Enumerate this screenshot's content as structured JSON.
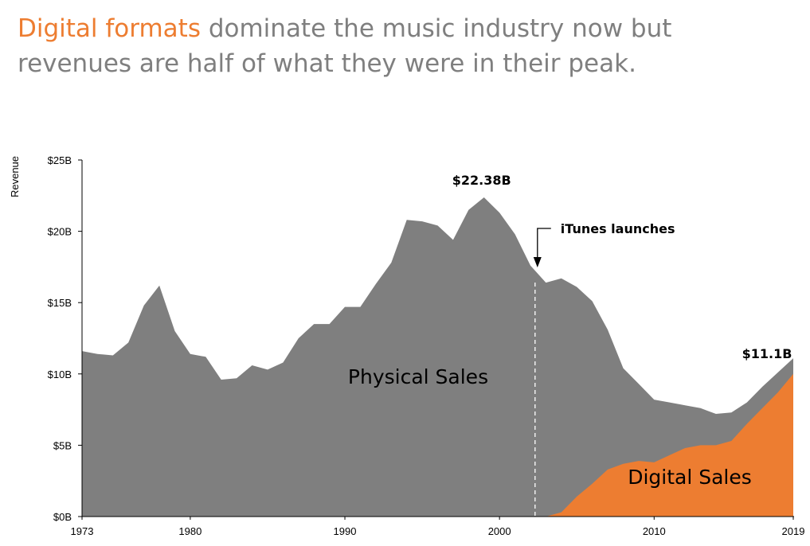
{
  "title": {
    "highlight": "Digital formats",
    "rest": " dominate the music industry now but revenues are half of what they were in their peak."
  },
  "colors": {
    "physical": "#7f7f7f",
    "digital": "#ed7d31",
    "title_text": "#7f7f7f"
  },
  "chart_data": {
    "type": "area",
    "stacked": true,
    "ylabel": "Revenue",
    "xlim": [
      1973,
      2019
    ],
    "ylim": [
      0,
      25
    ],
    "x_ticks": [
      "1973",
      "1980",
      "1990",
      "2000",
      "2010",
      "2019"
    ],
    "y_ticks": [
      "$0B",
      "$5B",
      "$10B",
      "$15B",
      "$20B",
      "$25B"
    ],
    "x": [
      1973,
      1974,
      1975,
      1976,
      1977,
      1978,
      1979,
      1980,
      1981,
      1982,
      1983,
      1984,
      1985,
      1986,
      1987,
      1988,
      1989,
      1990,
      1991,
      1992,
      1993,
      1994,
      1995,
      1996,
      1997,
      1998,
      1999,
      2000,
      2001,
      2002,
      2003,
      2004,
      2005,
      2006,
      2007,
      2008,
      2009,
      2010,
      2011,
      2012,
      2013,
      2014,
      2015,
      2016,
      2017,
      2018,
      2019
    ],
    "series": [
      {
        "name": "Physical Sales",
        "values": [
          11.6,
          11.4,
          11.3,
          12.2,
          14.8,
          16.2,
          13.0,
          11.4,
          11.2,
          9.6,
          9.7,
          10.6,
          10.3,
          10.8,
          12.5,
          13.5,
          13.5,
          14.7,
          14.7,
          16.3,
          17.8,
          20.8,
          20.7,
          20.4,
          19.4,
          21.5,
          22.38,
          21.3,
          19.8,
          17.6,
          16.4,
          16.4,
          14.7,
          12.8,
          9.8,
          6.7,
          5.4,
          4.4,
          3.7,
          3.0,
          2.6,
          2.2,
          2.0,
          1.5,
          1.5,
          1.4,
          1.1
        ]
      },
      {
        "name": "Digital Sales",
        "values": [
          0,
          0,
          0,
          0,
          0,
          0,
          0,
          0,
          0,
          0,
          0,
          0,
          0,
          0,
          0,
          0,
          0,
          0,
          0,
          0,
          0,
          0,
          0,
          0,
          0,
          0,
          0,
          0,
          0,
          0,
          0,
          0.3,
          1.4,
          2.3,
          3.3,
          3.7,
          3.9,
          3.8,
          4.3,
          4.8,
          5.0,
          5.0,
          5.3,
          6.5,
          7.6,
          8.7,
          10.0
        ]
      }
    ],
    "annotations": [
      {
        "text": "$22.38B",
        "x": 1999,
        "y": 22.38
      },
      {
        "text": "iTunes launches",
        "x": 2002.3
      },
      {
        "text": "$11.1B",
        "x": 2019,
        "y": 11.1
      }
    ]
  }
}
